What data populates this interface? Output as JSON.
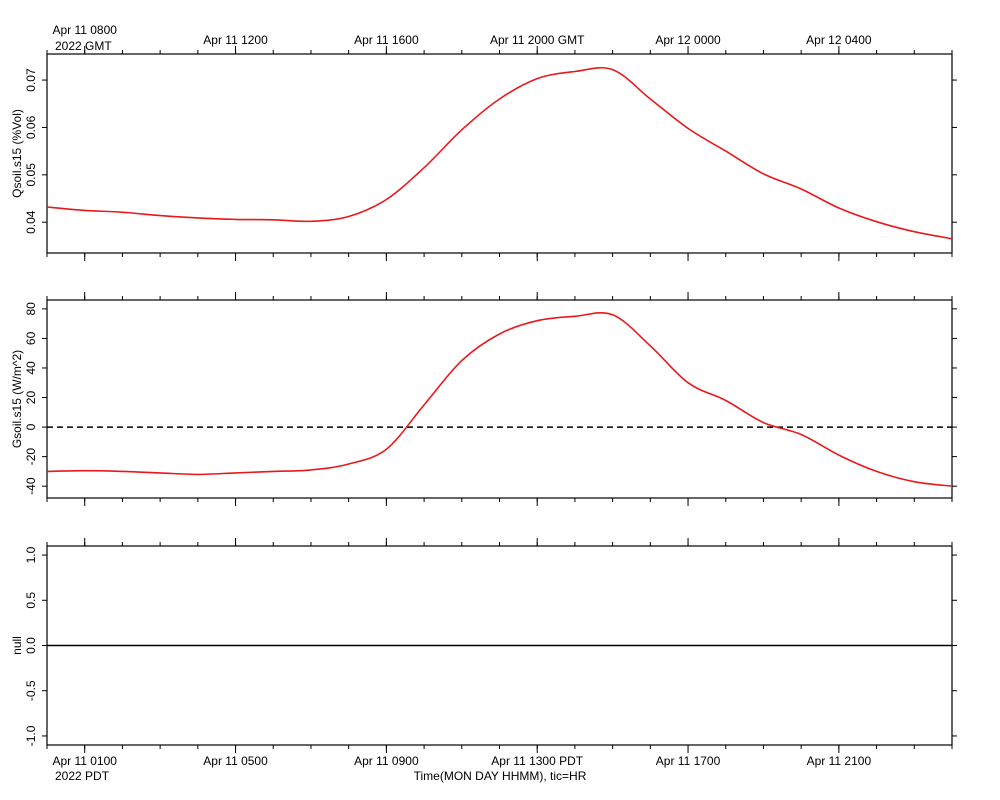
{
  "chart_data": [
    {
      "type": "line",
      "ylabel": "Qsoil.s15 (%Vol)",
      "ylim": [
        0.0335,
        0.0755
      ],
      "yticks": [
        0.04,
        0.05,
        0.06,
        0.07
      ],
      "ytick_labels": [
        "0.04",
        "0.05",
        "0.06",
        "0.07"
      ],
      "line_color": "#e8191d",
      "x": [
        0,
        1,
        2,
        3,
        4,
        5,
        6,
        7,
        8,
        9,
        10,
        11,
        12,
        13,
        14,
        15,
        16,
        17,
        18,
        19,
        20,
        21,
        22,
        23,
        24
      ],
      "y": [
        0.0432,
        0.0425,
        0.0421,
        0.0414,
        0.0409,
        0.0406,
        0.0405,
        0.0402,
        0.0412,
        0.0448,
        0.0515,
        0.0595,
        0.066,
        0.0703,
        0.0718,
        0.0722,
        0.066,
        0.0598,
        0.055,
        0.0502,
        0.047,
        0.043,
        0.0401,
        0.038,
        0.0365
      ]
    },
    {
      "type": "line",
      "ylabel": "Gsoil.s15 (W/m^2)",
      "ylim": [
        -48,
        86
      ],
      "yticks": [
        -40,
        -20,
        0,
        20,
        40,
        60,
        80
      ],
      "ytick_labels": [
        "-40",
        "-20",
        "0",
        "20",
        "40",
        "60",
        "80"
      ],
      "zero_line": "dashed",
      "line_color": "#e8191d",
      "x": [
        0,
        1,
        2,
        3,
        4,
        5,
        6,
        7,
        8,
        9,
        10,
        11,
        12,
        13,
        14,
        15,
        16,
        17,
        18,
        19,
        20,
        21,
        22,
        23,
        24
      ],
      "y": [
        -30,
        -29.5,
        -30,
        -31,
        -32,
        -31,
        -30,
        -29,
        -25,
        -15,
        15,
        45,
        63,
        72,
        75,
        76,
        55,
        30,
        18,
        3,
        -5,
        -19,
        -30,
        -37,
        -40
      ]
    },
    {
      "type": "line",
      "ylabel": "null",
      "ylim": [
        -1.1,
        1.1
      ],
      "yticks": [
        -1.0,
        -0.5,
        0.0,
        0.5,
        1.0
      ],
      "ytick_labels": [
        "-1.0",
        "-0.5",
        "0.0",
        "0.5",
        "1.0"
      ],
      "line_color": "#000000",
      "x": [
        0,
        24
      ],
      "y": [
        0,
        0
      ]
    }
  ],
  "time_axis": {
    "x_range": [
      0,
      24
    ],
    "major_ticks": [
      1,
      5,
      9,
      13,
      17,
      21
    ],
    "minor_ticks": [
      0,
      1,
      2,
      3,
      4,
      5,
      6,
      7,
      8,
      9,
      10,
      11,
      12,
      13,
      14,
      15,
      16,
      17,
      18,
      19,
      20,
      21,
      22,
      23,
      24
    ],
    "top_labels": [
      "Apr 11 0800",
      "Apr 11 1200",
      "Apr 11 1600",
      "Apr 11 2000 GMT",
      "Apr 12 0000",
      "Apr 12 0400"
    ],
    "top_year": "2022 GMT",
    "bottom_labels": [
      "Apr 11 0100",
      "Apr 11 0500",
      "Apr 11 0900",
      "Apr 11 1300 PDT",
      "Apr 11 1700",
      "Apr 11 2100"
    ],
    "bottom_year": "2022 PDT",
    "xlabel": "Time(MON DAY HHMM), tic=HR"
  }
}
